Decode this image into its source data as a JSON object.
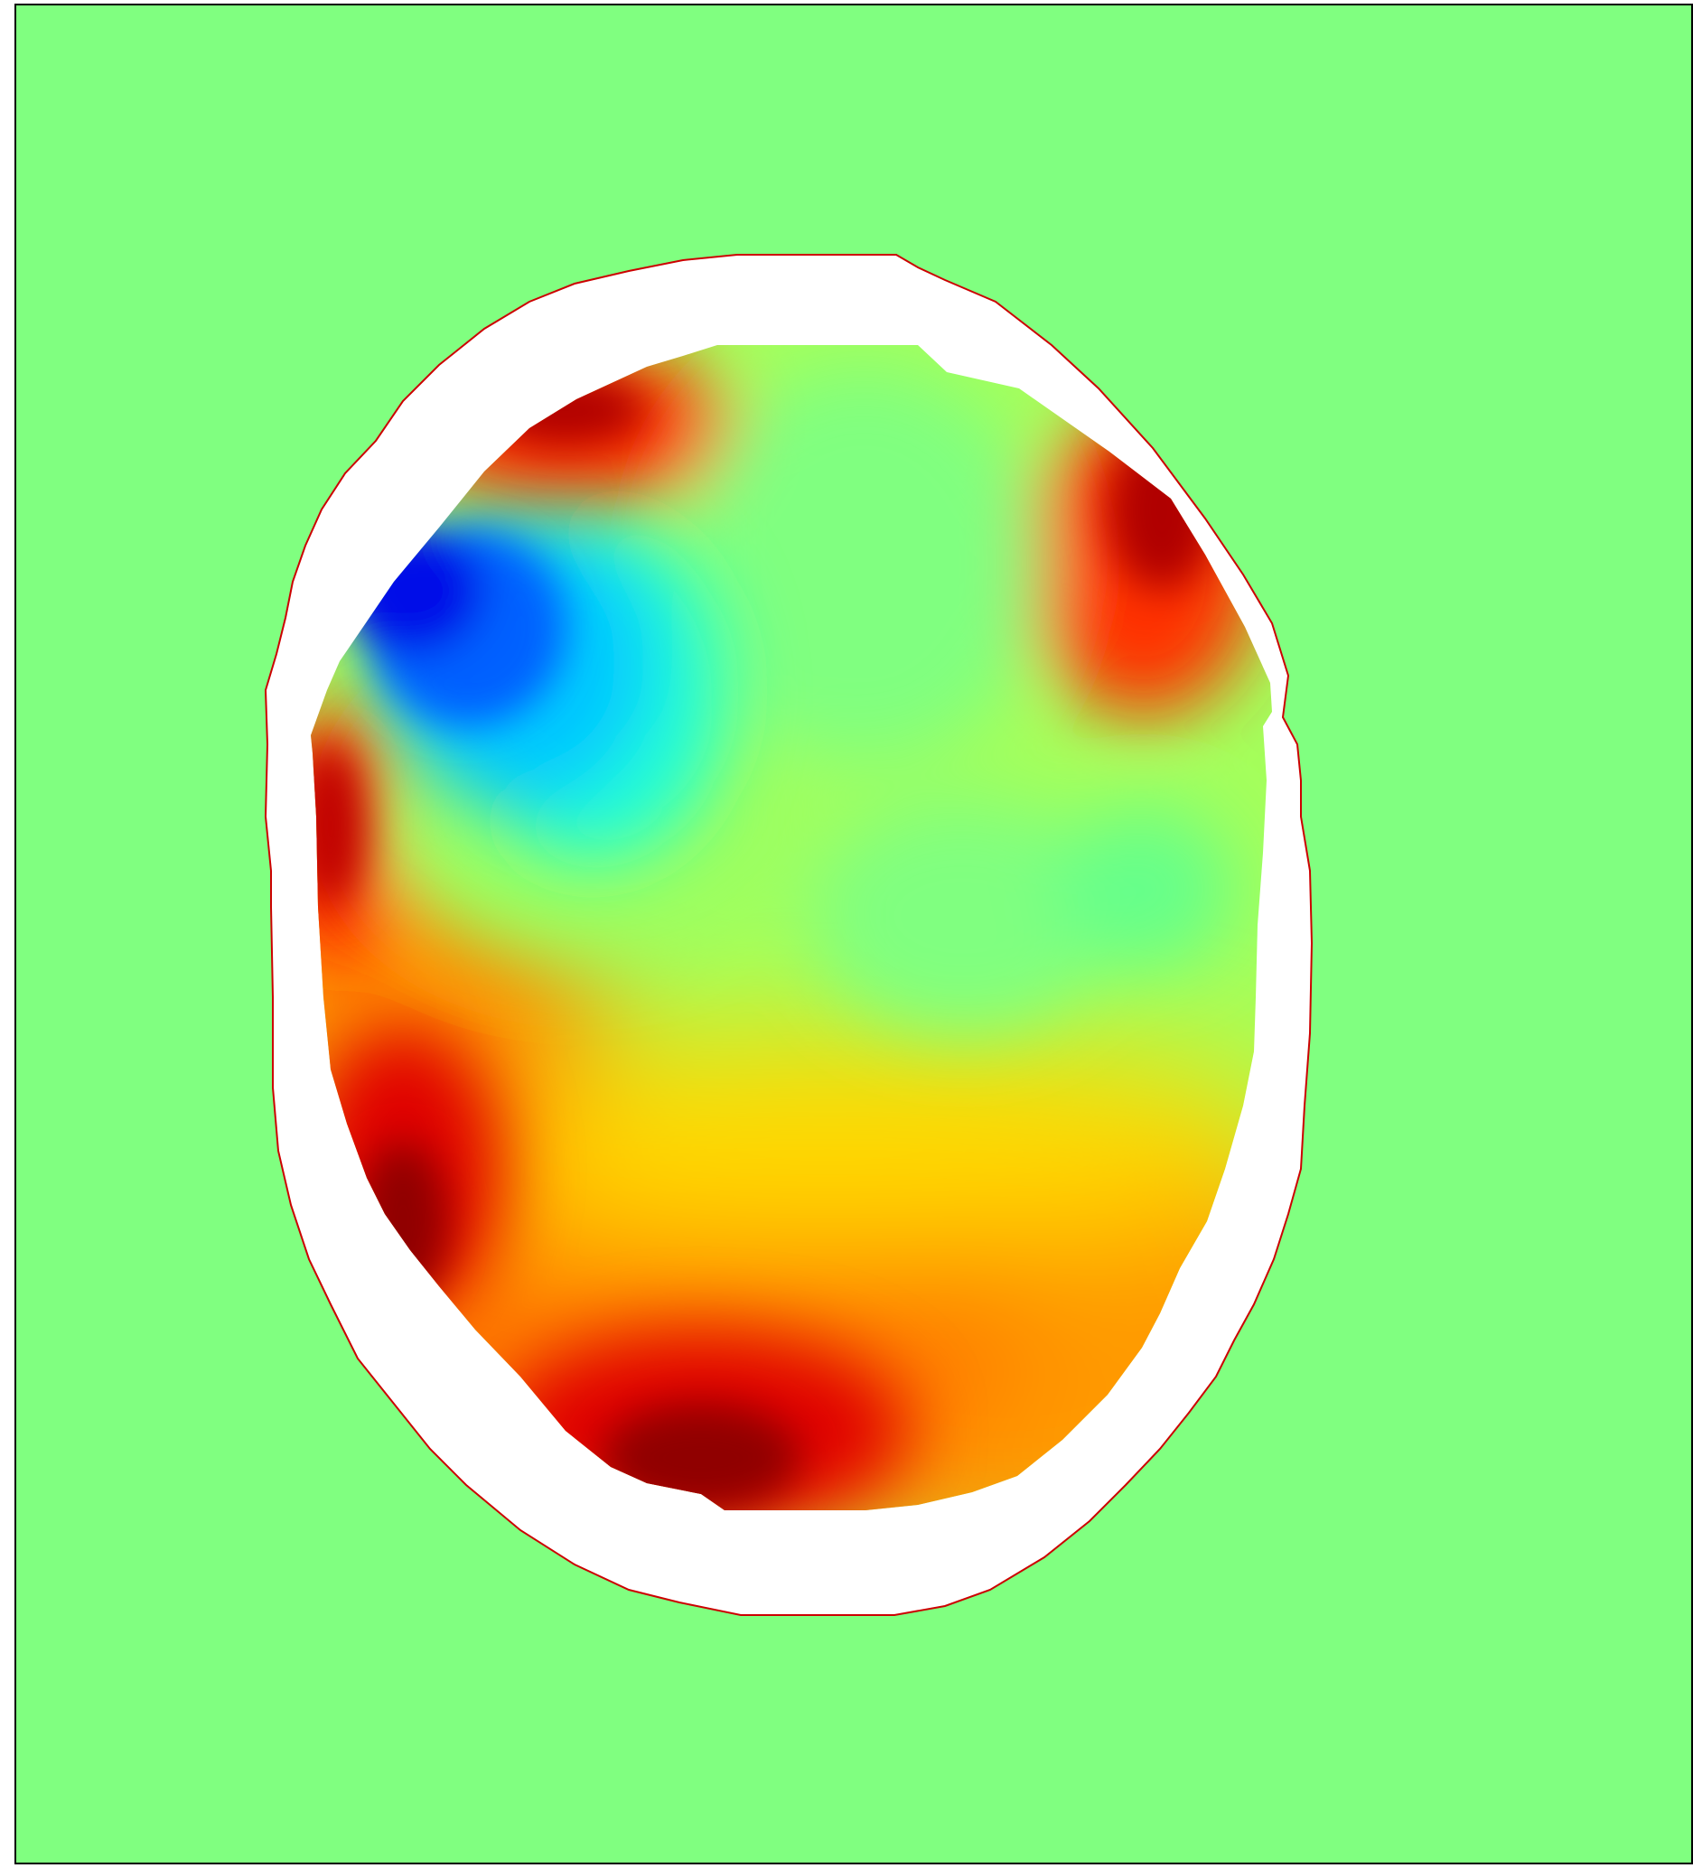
{
  "chart_data": {
    "type": "heatmap",
    "title": "",
    "xlabel": "",
    "ylabel": "",
    "colormap": "jet",
    "colors": {
      "background": "#80ff80",
      "frame": "#000000",
      "mask": "#ffffff",
      "contour_line": "#cc0000"
    },
    "value_range": [
      -1,
      1
    ],
    "grid": false,
    "legend": "none",
    "features": [
      {
        "name": "blue-minimum",
        "value": -1.0
      },
      {
        "name": "dark-red-maximum-bottom",
        "value": 1.0
      },
      {
        "name": "red-maximum-left",
        "value": 0.95
      },
      {
        "name": "red-maximum-top-right",
        "value": 0.9
      },
      {
        "name": "red-maximum-top-left",
        "value": 0.9
      },
      {
        "name": "dark-red-maximum-lower-left",
        "value": 1.0
      },
      {
        "name": "green-minimum-right",
        "value": -0.2
      },
      {
        "name": "green-center",
        "value": 0.0
      }
    ]
  }
}
